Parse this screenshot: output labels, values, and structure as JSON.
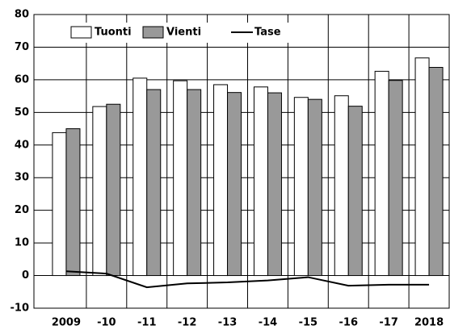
{
  "chart_data": {
    "type": "bar",
    "categories": [
      "2009",
      "-10",
      "-11",
      "-12",
      "-13",
      "-14",
      "-15",
      "-16",
      "-17",
      "2018"
    ],
    "series": [
      {
        "name": "Tuonti",
        "type": "bar",
        "color": "#ffffff",
        "values": [
          43.8,
          51.8,
          60.5,
          59.7,
          58.5,
          57.8,
          54.6,
          55.1,
          62.6,
          66.7
        ]
      },
      {
        "name": "Vienti",
        "type": "bar",
        "color": "#999999",
        "values": [
          45.0,
          52.5,
          57.0,
          57.0,
          56.1,
          56.0,
          54.0,
          51.9,
          59.8,
          63.8
        ]
      },
      {
        "name": "Tase",
        "type": "line",
        "color": "#000000",
        "values": [
          1.3,
          0.6,
          -3.6,
          -2.4,
          -2.1,
          -1.5,
          -0.5,
          -3.1,
          -2.8,
          -2.8
        ]
      }
    ],
    "ylim": [
      -10,
      80
    ],
    "yticks": [
      -10,
      0,
      10,
      20,
      30,
      40,
      50,
      60,
      70,
      80
    ],
    "grid": true,
    "legend": "top"
  }
}
